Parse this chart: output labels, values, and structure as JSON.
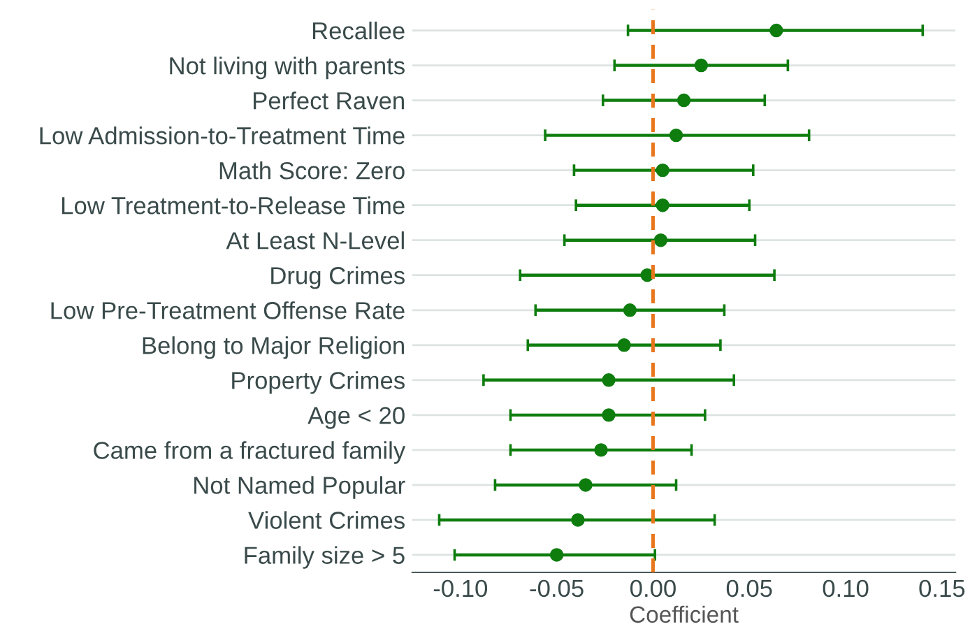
{
  "chart_data": {
    "type": "scatter",
    "orientation": "horizontal",
    "xlabel": "Coefficient",
    "categories": [
      "Recallee",
      "Not living with parents",
      "Perfect Raven",
      "Low Admission-to-Treatment Time",
      "Math Score: Zero",
      "Low Treatment-to-Release Time",
      "At Least N-Level",
      "Drug Crimes",
      "Low Pre-Treatment Offense Rate",
      "Belong to Major Religion",
      "Property Crimes",
      "Age < 20",
      "Came from a fractured family",
      "Not Named Popular",
      "Violent Crimes",
      "Family size > 5"
    ],
    "series": [
      {
        "color": "#0e7d0e",
        "values": [
          0.064,
          0.025,
          0.016,
          0.012,
          0.005,
          0.005,
          0.004,
          -0.003,
          -0.012,
          -0.015,
          -0.023,
          -0.023,
          -0.027,
          -0.035,
          -0.039,
          -0.05
        ],
        "errors": [
          [
            -0.013,
            0.14
          ],
          [
            -0.02,
            0.07
          ],
          [
            -0.026,
            0.058
          ],
          [
            -0.056,
            0.081
          ],
          [
            -0.041,
            0.052
          ],
          [
            -0.04,
            0.05
          ],
          [
            -0.046,
            0.053
          ],
          [
            -0.069,
            0.063
          ],
          [
            -0.061,
            0.037
          ],
          [
            -0.065,
            0.035
          ],
          [
            -0.088,
            0.042
          ],
          [
            -0.074,
            0.027
          ],
          [
            -0.074,
            0.02
          ],
          [
            -0.082,
            0.012
          ],
          [
            -0.111,
            0.032
          ],
          [
            -0.103,
            0.001
          ]
        ]
      }
    ],
    "xlim": [
      -0.125,
      0.157
    ],
    "xticks": [
      {
        "value": -0.1,
        "label": "-0.10"
      },
      {
        "value": -0.05,
        "label": "-0.05"
      },
      {
        "value": 0,
        "label": "0.00"
      },
      {
        "value": 0.05,
        "label": "0.05"
      },
      {
        "value": 0.1,
        "label": "0.10"
      },
      {
        "value": 0.15,
        "label": "0.15"
      }
    ],
    "ref_lines": [
      {
        "axis": "x",
        "value": 0,
        "color": "#e8761c",
        "line_style": "dashed"
      }
    ],
    "grid": "y",
    "marker": "circle",
    "legend": false
  }
}
